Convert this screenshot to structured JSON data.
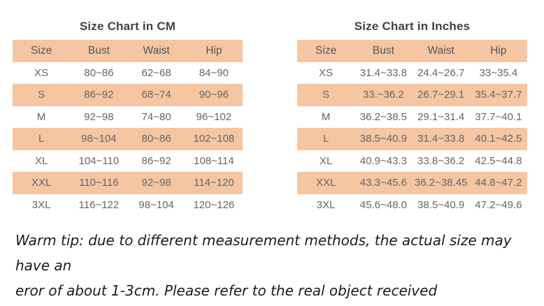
{
  "tables": [
    {
      "title": "Size Chart in CM",
      "columns": [
        "Size",
        "Bust",
        "Waist",
        "Hip"
      ],
      "rows": [
        [
          "XS",
          "80~86",
          "62~68",
          "84~90"
        ],
        [
          "S",
          "86~92",
          "68~74",
          "90~96"
        ],
        [
          "M",
          "92~98",
          "74~80",
          "96~102"
        ],
        [
          "L",
          "98~104",
          "80~86",
          "102~108"
        ],
        [
          "XL",
          "104~110",
          "86~92",
          "108~114"
        ],
        [
          "XXL",
          "110~116",
          "92~98",
          "114~120"
        ],
        [
          "3XL",
          "116~122",
          "98~104",
          "120~126"
        ]
      ]
    },
    {
      "title": "Size Chart in Inches",
      "columns": [
        "Size",
        "Bust",
        "Waist",
        "Hip"
      ],
      "rows": [
        [
          "XS",
          "31.4~33.8",
          "24.4~26.7",
          "33~35.4"
        ],
        [
          "S",
          "33.~36.2",
          "26.7~29.1",
          "35.4~37.7"
        ],
        [
          "M",
          "36.2~38.5",
          "29.1~31.4",
          "37.7~40.1"
        ],
        [
          "L",
          "38.5~40.9",
          "31.4~33.8",
          "40.1~42.5"
        ],
        [
          "XL",
          "40.9~43.3",
          "33.8~36.2",
          "42.5~44.8"
        ],
        [
          "XXL",
          "43.3~45.6",
          "36.2~38.45",
          "44.8~47.2"
        ],
        [
          "3XL",
          "45.6~48.0",
          "38.5~40.9",
          "47.2~49.6"
        ]
      ]
    }
  ],
  "note": {
    "line1": "Warm tip: due to different measurement methods, the actual size may have an",
    "line2": "eror of about 1-3cm. Please refer to the real object received"
  },
  "colors": {
    "stripe_band": "#f5c6a1",
    "title_text": "#3d434b",
    "header_text": "#54575c",
    "cell_text": "#63666b",
    "note_text": "#1c1c1c",
    "background": "#ffffff"
  }
}
